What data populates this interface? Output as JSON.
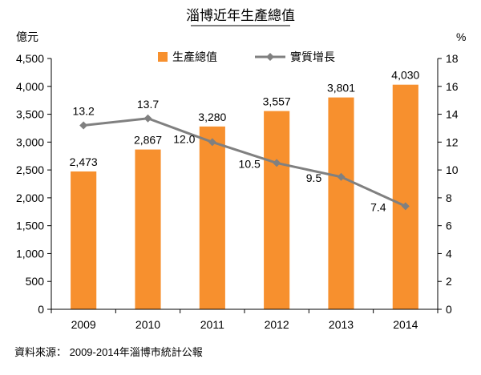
{
  "chart_data": {
    "type": "bar",
    "title": "淄博近年生產總值",
    "source": "資料來源： 2009-2014年淄博市統計公報",
    "categories": [
      "2009",
      "2010",
      "2011",
      "2012",
      "2013",
      "2014"
    ],
    "series": [
      {
        "name": "生產總值",
        "type": "bar",
        "axis": "left",
        "color": "#F7902E",
        "values": [
          2473,
          2867,
          3280,
          3557,
          3801,
          4030
        ],
        "labels": [
          "2,473",
          "2,867",
          "3,280",
          "3,557",
          "3,801",
          "4,030"
        ]
      },
      {
        "name": "實質增長",
        "type": "line",
        "axis": "right",
        "color": "#808080",
        "values": [
          13.2,
          13.7,
          12.0,
          10.5,
          9.5,
          7.4
        ],
        "labels": [
          "13.2",
          "13.7",
          "12.0",
          "10.5",
          "9.5",
          "7.4"
        ]
      }
    ],
    "y_left": {
      "unit": "億元",
      "min": 0,
      "max": 4500,
      "ticks": [
        0,
        500,
        1000,
        1500,
        2000,
        2500,
        3000,
        3500,
        4000,
        4500
      ],
      "tick_labels": [
        "0",
        "500",
        "1,000",
        "1,500",
        "2,000",
        "2,500",
        "3,000",
        "3,500",
        "4,000",
        "4,500"
      ]
    },
    "y_right": {
      "unit": "%",
      "min": 0,
      "max": 18,
      "ticks": [
        0,
        2,
        4,
        6,
        8,
        10,
        12,
        14,
        16,
        18
      ],
      "tick_labels": [
        "0",
        "2",
        "4",
        "6",
        "8",
        "10",
        "12",
        "14",
        "16",
        "18"
      ]
    },
    "grid": false,
    "legend": "top-center"
  }
}
